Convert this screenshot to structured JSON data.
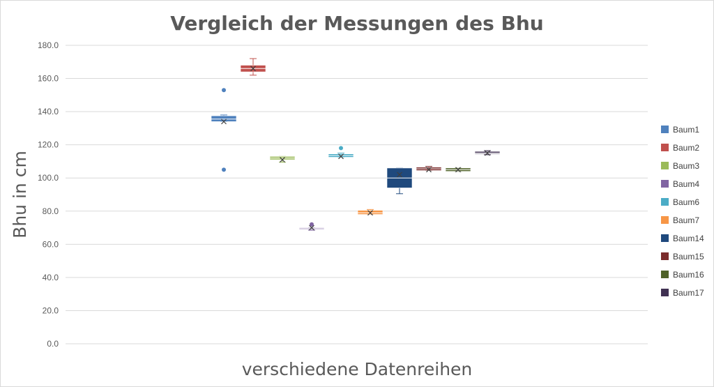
{
  "chart_data": {
    "type": "boxplot",
    "title": "Vergleich der Messungen des Bhu",
    "xlabel": "verschiedene Datenreihen",
    "ylabel": "Bhu in cm",
    "ylim": [
      0,
      180
    ],
    "yticks": [
      "0.0",
      "20.0",
      "40.0",
      "60.0",
      "80.0",
      "100.0",
      "120.0",
      "140.0",
      "160.0",
      "180.0"
    ],
    "grid": true,
    "legend_position": "right",
    "series": [
      {
        "name": "Baum1",
        "color": "#4f81bd",
        "min": 134,
        "q1": 134,
        "median": 135.5,
        "q3": 137.5,
        "max": 138,
        "mean": 134,
        "outliers": [
          153,
          105
        ]
      },
      {
        "name": "Baum2",
        "color": "#c0504d",
        "min": 162,
        "q1": 164,
        "median": 166,
        "q3": 168,
        "max": 172,
        "mean": 166,
        "outliers": []
      },
      {
        "name": "Baum3",
        "color": "#9bbb59",
        "min": 109.5,
        "q1": 111,
        "median": 112,
        "q3": 113,
        "max": 113,
        "mean": 111,
        "outliers": []
      },
      {
        "name": "Baum4",
        "color": "#8064a2",
        "min": 68.5,
        "q1": 69,
        "median": 69.5,
        "q3": 70,
        "max": 70,
        "mean": 70,
        "outliers": [
          72
        ]
      },
      {
        "name": "Baum6",
        "color": "#4bacc6",
        "min": 112.5,
        "q1": 112.5,
        "median": 113.5,
        "q3": 114.5,
        "max": 115,
        "mean": 113,
        "outliers": [
          118
        ]
      },
      {
        "name": "Baum7",
        "color": "#f79646",
        "min": 78,
        "q1": 78,
        "median": 79,
        "q3": 80.5,
        "max": 81,
        "mean": 79,
        "outliers": []
      },
      {
        "name": "Baum14",
        "color": "#1f497d",
        "min": 90.5,
        "q1": 94,
        "median": 100,
        "q3": 106,
        "max": 106,
        "mean": 102,
        "outliers": []
      },
      {
        "name": "Baum15",
        "color": "#7b2c2c",
        "min": 104.5,
        "q1": 104.5,
        "median": 105.5,
        "q3": 106.5,
        "max": 107,
        "mean": 105,
        "outliers": []
      },
      {
        "name": "Baum16",
        "color": "#4f6228",
        "min": 104,
        "q1": 104,
        "median": 105,
        "q3": 106,
        "max": 106,
        "mean": 105,
        "outliers": []
      },
      {
        "name": "Baum17",
        "color": "#403152",
        "min": 114,
        "q1": 114.5,
        "median": 115,
        "q3": 116,
        "max": 116.5,
        "mean": 115,
        "outliers": []
      }
    ]
  }
}
